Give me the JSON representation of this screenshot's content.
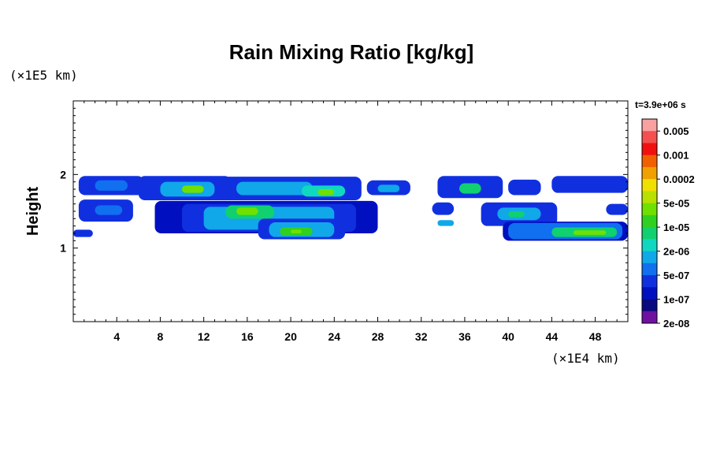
{
  "chart_data": {
    "type": "heatmap",
    "title": "Rain Mixing Ratio [kg/kg]",
    "ylabel": "Height",
    "xlabel": "",
    "x_unit": "(×1E4 km)",
    "y_unit": "(×1E5 km)",
    "time_label": "t=3.9e+06 s",
    "xlim": [
      0,
      51
    ],
    "ylim": [
      0,
      3
    ],
    "x_ticks": [
      "4",
      "8",
      "12",
      "16",
      "20",
      "24",
      "28",
      "32",
      "36",
      "40",
      "44",
      "48"
    ],
    "y_ticks": [
      "1",
      "2"
    ],
    "colorbar": {
      "labels": [
        "0.005",
        "0.001",
        "0.0002",
        "5e-05",
        "1e-05",
        "2e-06",
        "5e-07",
        "1e-07",
        "2e-08"
      ],
      "colors": [
        "#f9a0a0",
        "#f45050",
        "#f01010",
        "#f06000",
        "#f0a000",
        "#f0e000",
        "#b8e000",
        "#70e000",
        "#30d020",
        "#10d070",
        "#10d8c0",
        "#10a8e8",
        "#1070f0",
        "#1030e0",
        "#0010c0",
        "#0a0a80",
        "#7010a0"
      ]
    },
    "cells": [
      {
        "x": [
          0.5,
          6.5
        ],
        "y": [
          1.72,
          1.98
        ],
        "level": 13
      },
      {
        "x": [
          2.0,
          5.0
        ],
        "y": [
          1.78,
          1.92
        ],
        "level": 12
      },
      {
        "x": [
          0.5,
          5.5
        ],
        "y": [
          1.36,
          1.66
        ],
        "level": 13
      },
      {
        "x": [
          2.0,
          4.5
        ],
        "y": [
          1.45,
          1.58
        ],
        "level": 12
      },
      {
        "x": [
          0.0,
          1.8
        ],
        "y": [
          1.15,
          1.25
        ],
        "level": 13
      },
      {
        "x": [
          6.0,
          14.5
        ],
        "y": [
          1.65,
          1.98
        ],
        "level": 13
      },
      {
        "x": [
          8.0,
          13.0
        ],
        "y": [
          1.7,
          1.9
        ],
        "level": 11
      },
      {
        "x": [
          10.0,
          12.0
        ],
        "y": [
          1.75,
          1.85
        ],
        "level": 7
      },
      {
        "x": [
          13.0,
          26.5
        ],
        "y": [
          1.65,
          1.97
        ],
        "level": 13
      },
      {
        "x": [
          15.0,
          22.0
        ],
        "y": [
          1.72,
          1.9
        ],
        "level": 11
      },
      {
        "x": [
          21.0,
          25.0
        ],
        "y": [
          1.7,
          1.85
        ],
        "level": 10
      },
      {
        "x": [
          22.5,
          24.0
        ],
        "y": [
          1.72,
          1.8
        ],
        "level": 7
      },
      {
        "x": [
          27.0,
          31.0
        ],
        "y": [
          1.72,
          1.92
        ],
        "level": 13
      },
      {
        "x": [
          28.0,
          30.0
        ],
        "y": [
          1.76,
          1.86
        ],
        "level": 11
      },
      {
        "x": [
          33.5,
          39.5
        ],
        "y": [
          1.68,
          1.98
        ],
        "level": 13
      },
      {
        "x": [
          35.5,
          37.5
        ],
        "y": [
          1.74,
          1.88
        ],
        "level": 9
      },
      {
        "x": [
          40.0,
          43.0
        ],
        "y": [
          1.72,
          1.93
        ],
        "level": 13
      },
      {
        "x": [
          44.0,
          51.0
        ],
        "y": [
          1.75,
          1.98
        ],
        "level": 13
      },
      {
        "x": [
          7.5,
          28.0
        ],
        "y": [
          1.2,
          1.64
        ],
        "level": 14
      },
      {
        "x": [
          10.0,
          26.0
        ],
        "y": [
          1.22,
          1.6
        ],
        "level": 13
      },
      {
        "x": [
          12.0,
          24.0
        ],
        "y": [
          1.25,
          1.56
        ],
        "level": 11
      },
      {
        "x": [
          14.0,
          18.5
        ],
        "y": [
          1.4,
          1.58
        ],
        "level": 9
      },
      {
        "x": [
          15.0,
          17.0
        ],
        "y": [
          1.45,
          1.55
        ],
        "level": 7
      },
      {
        "x": [
          17.0,
          25.0
        ],
        "y": [
          1.12,
          1.4
        ],
        "level": 13
      },
      {
        "x": [
          18.0,
          24.0
        ],
        "y": [
          1.15,
          1.35
        ],
        "level": 11
      },
      {
        "x": [
          19.0,
          22.0
        ],
        "y": [
          1.17,
          1.28
        ],
        "level": 8
      },
      {
        "x": [
          20.0,
          21.0
        ],
        "y": [
          1.2,
          1.25
        ],
        "level": 7
      },
      {
        "x": [
          33.0,
          35.0
        ],
        "y": [
          1.45,
          1.62
        ],
        "level": 13
      },
      {
        "x": [
          33.5,
          35.0
        ],
        "y": [
          1.3,
          1.38
        ],
        "level": 11
      },
      {
        "x": [
          37.5,
          44.5
        ],
        "y": [
          1.3,
          1.62
        ],
        "level": 13
      },
      {
        "x": [
          39.0,
          43.0
        ],
        "y": [
          1.38,
          1.55
        ],
        "level": 11
      },
      {
        "x": [
          40.0,
          41.5
        ],
        "y": [
          1.42,
          1.5
        ],
        "level": 9
      },
      {
        "x": [
          39.5,
          51.0
        ],
        "y": [
          1.1,
          1.36
        ],
        "level": 14
      },
      {
        "x": [
          40.0,
          50.5
        ],
        "y": [
          1.12,
          1.34
        ],
        "level": 12
      },
      {
        "x": [
          44.0,
          50.0
        ],
        "y": [
          1.15,
          1.28
        ],
        "level": 9
      },
      {
        "x": [
          46.0,
          49.0
        ],
        "y": [
          1.18,
          1.24
        ],
        "level": 7
      },
      {
        "x": [
          49.0,
          51.0
        ],
        "y": [
          1.45,
          1.6
        ],
        "level": 13
      }
    ]
  }
}
